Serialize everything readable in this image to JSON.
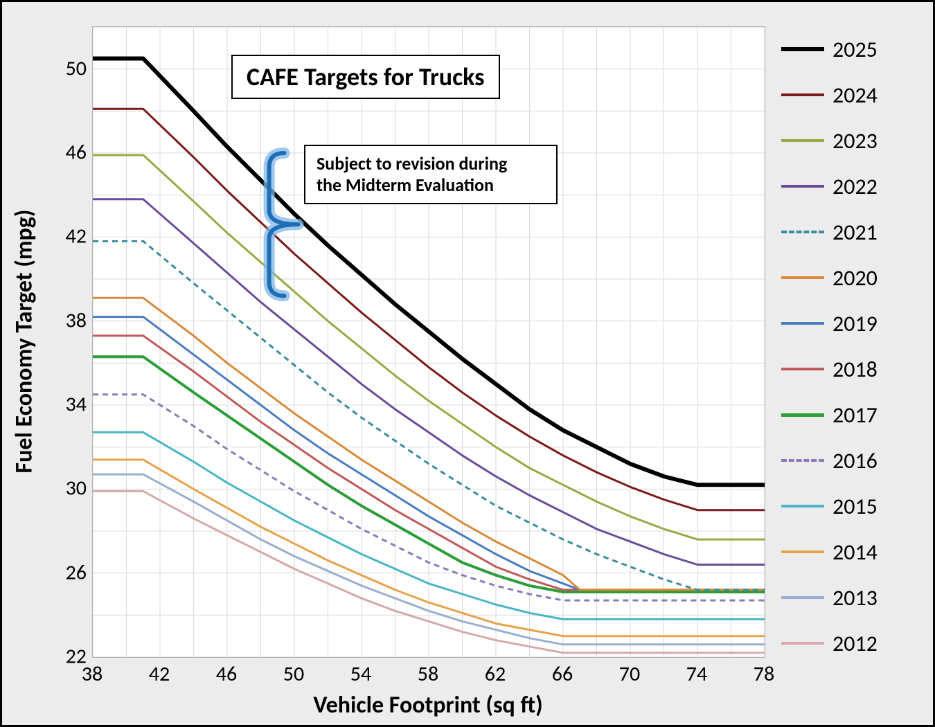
{
  "chart": {
    "type": "line",
    "title": "CAFE Targets for Trucks",
    "annotation": "Subject to revision during\nthe Midterm Evaluation",
    "x_label": "Vehicle Footprint (sq ft)",
    "y_label": "Fuel Economy Target (mpg)",
    "title_fontsize": 36,
    "annotation_fontsize": 26,
    "axis_label_fontsize": 34,
    "tick_fontsize": 30,
    "legend_fontsize": 32,
    "background_color": "#ececec",
    "plot_background_color": "#ffffff",
    "grid_color": "#d9d9d9",
    "border_color": "#000000",
    "x_min": 38,
    "x_max": 78,
    "y_min": 22,
    "y_max": 52,
    "x_ticks": [
      38,
      42,
      46,
      50,
      54,
      58,
      62,
      66,
      70,
      74,
      78
    ],
    "y_ticks": [
      22,
      26,
      30,
      34,
      38,
      42,
      46,
      50
    ],
    "bracket_color": "#1f6db3",
    "bracket_glow": "#7fb6e8",
    "series": [
      {
        "label": "2025",
        "color": "#000000",
        "width": 6,
        "dash": "none",
        "x": [
          38,
          41,
          44,
          46,
          48,
          50,
          52,
          54,
          56,
          58,
          60,
          62,
          64,
          66,
          68,
          70,
          72,
          74,
          78
        ],
        "y": [
          50.5,
          50.5,
          48.0,
          46.3,
          44.7,
          43.1,
          41.6,
          40.2,
          38.8,
          37.5,
          36.2,
          35.0,
          33.8,
          32.8,
          32.0,
          31.2,
          30.6,
          30.2,
          30.2
        ]
      },
      {
        "label": "2024",
        "color": "#7c1a1a",
        "width": 3,
        "dash": "none",
        "x": [
          38,
          41,
          44,
          46,
          48,
          50,
          52,
          54,
          56,
          58,
          60,
          62,
          64,
          66,
          68,
          70,
          72,
          74,
          78
        ],
        "y": [
          48.1,
          48.1,
          45.8,
          44.2,
          42.7,
          41.2,
          39.8,
          38.4,
          37.1,
          35.8,
          34.6,
          33.5,
          32.5,
          31.6,
          30.8,
          30.1,
          29.5,
          29.0,
          29.0
        ]
      },
      {
        "label": "2023",
        "color": "#9aa846",
        "width": 3,
        "dash": "none",
        "x": [
          38,
          41,
          44,
          46,
          48,
          50,
          52,
          54,
          56,
          58,
          60,
          62,
          64,
          66,
          68,
          70,
          72,
          74,
          78
        ],
        "y": [
          45.9,
          45.9,
          43.7,
          42.2,
          40.8,
          39.4,
          38.0,
          36.7,
          35.4,
          34.2,
          33.1,
          32.0,
          31.0,
          30.2,
          29.4,
          28.7,
          28.1,
          27.6,
          27.6
        ]
      },
      {
        "label": "2022",
        "color": "#6b4c9a",
        "width": 3,
        "dash": "none",
        "x": [
          38,
          41,
          44,
          46,
          48,
          50,
          52,
          54,
          56,
          58,
          60,
          62,
          64,
          66,
          68,
          70,
          72,
          74,
          78
        ],
        "y": [
          43.8,
          43.8,
          41.7,
          40.3,
          38.9,
          37.6,
          36.3,
          35.0,
          33.8,
          32.7,
          31.6,
          30.6,
          29.7,
          28.9,
          28.1,
          27.5,
          26.9,
          26.4,
          26.4
        ]
      },
      {
        "label": "2021",
        "color": "#3a8ca0",
        "width": 3,
        "dash": "8,6",
        "x": [
          38,
          41,
          44,
          46,
          48,
          50,
          52,
          54,
          56,
          58,
          60,
          62,
          64,
          66,
          68,
          70,
          72,
          74,
          78
        ],
        "y": [
          41.8,
          41.8,
          39.8,
          38.5,
          37.2,
          35.9,
          34.6,
          33.4,
          32.3,
          31.2,
          30.2,
          29.2,
          28.4,
          27.6,
          26.9,
          26.3,
          25.7,
          25.2,
          25.2
        ]
      },
      {
        "label": "2020",
        "color": "#d98a3a",
        "width": 3,
        "dash": "none",
        "x": [
          38,
          41,
          44,
          46,
          48,
          50,
          52,
          54,
          56,
          58,
          60,
          62,
          64,
          66,
          67,
          78
        ],
        "y": [
          39.1,
          39.1,
          37.3,
          36.0,
          34.8,
          33.6,
          32.5,
          31.4,
          30.4,
          29.4,
          28.4,
          27.5,
          26.7,
          25.9,
          25.2,
          25.2
        ]
      },
      {
        "label": "2019",
        "color": "#4a7bbf",
        "width": 3,
        "dash": "none",
        "x": [
          38,
          41,
          44,
          46,
          48,
          50,
          52,
          54,
          56,
          58,
          60,
          62,
          64,
          66,
          67,
          78
        ],
        "y": [
          38.2,
          38.2,
          36.4,
          35.2,
          34.0,
          32.8,
          31.7,
          30.7,
          29.7,
          28.7,
          27.8,
          26.9,
          26.1,
          25.5,
          25.2,
          25.2
        ]
      },
      {
        "label": "2018",
        "color": "#c05a5a",
        "width": 3,
        "dash": "none",
        "x": [
          38,
          41,
          44,
          46,
          48,
          50,
          52,
          54,
          56,
          58,
          60,
          62,
          64,
          66,
          67,
          78
        ],
        "y": [
          37.3,
          37.3,
          35.6,
          34.4,
          33.2,
          32.1,
          31.0,
          30.0,
          29.0,
          28.1,
          27.2,
          26.3,
          25.7,
          25.2,
          25.2,
          25.2
        ]
      },
      {
        "label": "2017",
        "color": "#2d9d3a",
        "width": 4,
        "dash": "none",
        "x": [
          38,
          41,
          44,
          46,
          48,
          50,
          52,
          54,
          56,
          58,
          60,
          62,
          64,
          66,
          67,
          78
        ],
        "y": [
          36.3,
          36.3,
          34.6,
          33.5,
          32.4,
          31.3,
          30.2,
          29.2,
          28.3,
          27.4,
          26.5,
          25.9,
          25.4,
          25.1,
          25.1,
          25.1
        ]
      },
      {
        "label": "2016",
        "color": "#8c7ab8",
        "width": 3,
        "dash": "8,6",
        "x": [
          38,
          41,
          44,
          46,
          48,
          50,
          52,
          54,
          56,
          58,
          60,
          62,
          64,
          66,
          78
        ],
        "y": [
          34.5,
          34.5,
          33.0,
          31.9,
          30.9,
          29.9,
          29.0,
          28.1,
          27.3,
          26.5,
          25.9,
          25.4,
          25.0,
          24.7,
          24.7
        ]
      },
      {
        "label": "2015",
        "color": "#4bb5c6",
        "width": 3,
        "dash": "none",
        "x": [
          38,
          41,
          44,
          46,
          48,
          50,
          52,
          54,
          56,
          58,
          60,
          62,
          64,
          66,
          78
        ],
        "y": [
          32.7,
          32.7,
          31.3,
          30.3,
          29.4,
          28.5,
          27.7,
          26.9,
          26.2,
          25.5,
          25.0,
          24.5,
          24.1,
          23.8,
          23.8
        ]
      },
      {
        "label": "2014",
        "color": "#e8a24a",
        "width": 3,
        "dash": "none",
        "x": [
          38,
          41,
          44,
          46,
          48,
          50,
          52,
          54,
          56,
          58,
          60,
          62,
          64,
          66,
          78
        ],
        "y": [
          31.4,
          31.4,
          30.0,
          29.1,
          28.2,
          27.4,
          26.6,
          25.9,
          25.2,
          24.6,
          24.1,
          23.6,
          23.3,
          23.0,
          23.0
        ]
      },
      {
        "label": "2013",
        "color": "#9aaed0",
        "width": 3,
        "dash": "none",
        "x": [
          38,
          41,
          44,
          46,
          48,
          50,
          52,
          54,
          56,
          58,
          60,
          62,
          64,
          66,
          78
        ],
        "y": [
          30.7,
          30.7,
          29.4,
          28.5,
          27.6,
          26.8,
          26.1,
          25.4,
          24.8,
          24.2,
          23.7,
          23.3,
          22.9,
          22.6,
          22.6
        ]
      },
      {
        "label": "2012",
        "color": "#d6a8a8",
        "width": 3,
        "dash": "none",
        "x": [
          38,
          41,
          44,
          46,
          48,
          50,
          52,
          54,
          56,
          58,
          60,
          62,
          64,
          66,
          78
        ],
        "y": [
          29.9,
          29.9,
          28.6,
          27.8,
          27.0,
          26.2,
          25.5,
          24.8,
          24.2,
          23.7,
          23.2,
          22.8,
          22.5,
          22.2,
          22.2
        ]
      }
    ]
  }
}
